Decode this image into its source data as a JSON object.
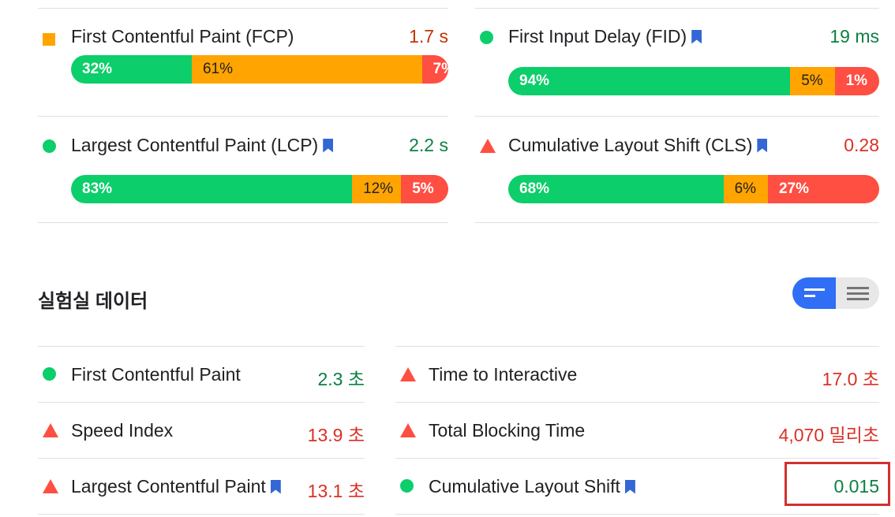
{
  "field_metrics": [
    {
      "label": "First Contentful Paint (FCP)",
      "value": "1.7 s",
      "status": "average",
      "bookmark": false,
      "distribution": {
        "good": "32%",
        "average": "61%",
        "poor": "7%"
      },
      "fractions": [
        0.32,
        0.61,
        0.07
      ]
    },
    {
      "label": "First Input Delay (FID)",
      "value": "19 ms",
      "status": "good",
      "bookmark": true,
      "distribution": {
        "good": "94%",
        "average": "5%",
        "poor": "1%"
      },
      "fractions": [
        0.76,
        0.12,
        0.12
      ]
    },
    {
      "label": "Largest Contentful Paint (LCP)",
      "value": "2.2 s",
      "status": "good",
      "bookmark": true,
      "distribution": {
        "good": "83%",
        "average": "12%",
        "poor": "5%"
      },
      "fractions": [
        0.745,
        0.13,
        0.125
      ]
    },
    {
      "label": "Cumulative Layout Shift (CLS)",
      "value": "0.28",
      "status": "poor",
      "bookmark": true,
      "distribution": {
        "good": "68%",
        "average": "6%",
        "poor": "27%"
      },
      "fractions": [
        0.58,
        0.12,
        0.3
      ]
    }
  ],
  "lab": {
    "title": "실험실 데이터",
    "metrics": [
      {
        "label": "First Contentful Paint",
        "value": "2.3 초",
        "status": "good",
        "bookmark": false
      },
      {
        "label": "Time to Interactive",
        "value": "17.0 초",
        "status": "poor",
        "bookmark": false
      },
      {
        "label": "Speed Index",
        "value": "13.9 초",
        "status": "poor",
        "bookmark": false
      },
      {
        "label": "Total Blocking Time",
        "value": "4,070 밀리초",
        "status": "poor",
        "bookmark": false
      },
      {
        "label": "Largest Contentful Paint",
        "value": "13.1 초",
        "status": "poor",
        "bookmark": true
      },
      {
        "label": "Cumulative Layout Shift",
        "value": "0.015",
        "status": "good",
        "bookmark": true
      }
    ]
  },
  "colors": {
    "good": "#0cce6b",
    "average": "#ffa400",
    "poor": "#ff4e42",
    "bookmark": "#3367d6",
    "toggle_active": "#2f6ef5",
    "highlight": "#d32f2f"
  }
}
